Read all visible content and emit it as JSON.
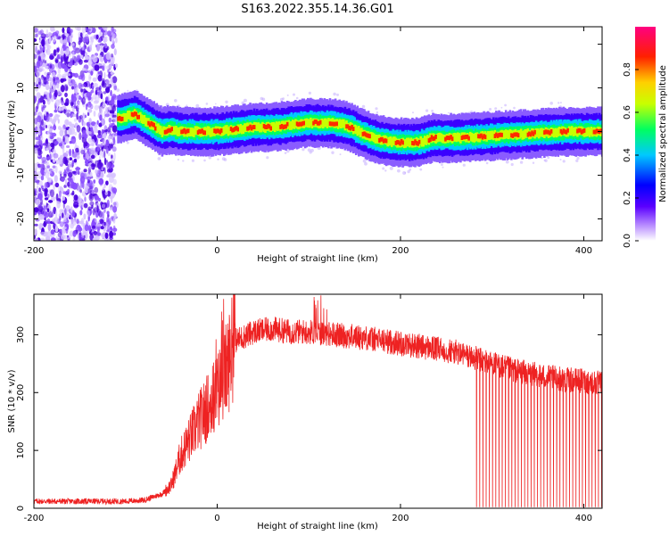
{
  "title": "S163.2022.355.14.36.G01",
  "chart_data": [
    {
      "type": "heatmap",
      "title": "S163.2022.355.14.36.G01",
      "xlabel": "Height of straight line (km)",
      "ylabel": "Frequency (Hz)",
      "xlim": [
        -200,
        420
      ],
      "ylim": [
        -25,
        24
      ],
      "xticks": [
        -200,
        0,
        200,
        400
      ],
      "yticks": [
        -20,
        -10,
        0,
        10,
        20
      ],
      "colorbar": {
        "label": "Normalized spectral amplitude",
        "range": [
          0,
          1
        ],
        "ticks": [
          "0.0",
          "0.2",
          "0.4",
          "0.6",
          "0.8"
        ],
        "colormap": [
          "#ffffff",
          "#6a00ff",
          "#0000ff",
          "#00c8ff",
          "#00ff60",
          "#c8ff00",
          "#ffd000",
          "#ff2000",
          "#ff0080"
        ]
      },
      "ridge": {
        "x": [
          -105,
          -90,
          -75,
          -60,
          -50,
          -40,
          -20,
          0,
          20,
          40,
          60,
          80,
          100,
          120,
          140,
          155,
          165,
          180,
          200,
          220,
          235,
          260,
          300,
          340,
          380,
          420
        ],
        "frequency": [
          3,
          4,
          2,
          0,
          0.5,
          0,
          0,
          0,
          0.5,
          1,
          1,
          1.5,
          2,
          2,
          1.5,
          0,
          -1,
          -2,
          -2.5,
          -2.5,
          -1.5,
          -1.5,
          -1,
          -0.5,
          0,
          0
        ]
      },
      "noise_band_x": [
        -200,
        -110
      ]
    },
    {
      "type": "line",
      "xlabel": "Height of straight line (km)",
      "ylabel": "SNR (10 * v/v)",
      "xlim": [
        -200,
        420
      ],
      "ylim": [
        0,
        370
      ],
      "xticks": [
        -200,
        0,
        200,
        400
      ],
      "yticks": [
        0,
        100,
        200,
        300
      ],
      "color": "#ee2222",
      "trend": {
        "x": [
          -200,
          -100,
          -80,
          -60,
          -50,
          -40,
          -20,
          0,
          10,
          20,
          40,
          60,
          80,
          100,
          120,
          140,
          160,
          180,
          200,
          220,
          240,
          260,
          280,
          290,
          320,
          350,
          380,
          400,
          420
        ],
        "y": [
          12,
          12,
          14,
          25,
          40,
          90,
          150,
          200,
          240,
          290,
          305,
          310,
          305,
          305,
          302,
          298,
          295,
          290,
          285,
          280,
          275,
          270,
          260,
          255,
          240,
          230,
          222,
          220,
          215
        ]
      },
      "dropout_start_x": 280
    }
  ]
}
